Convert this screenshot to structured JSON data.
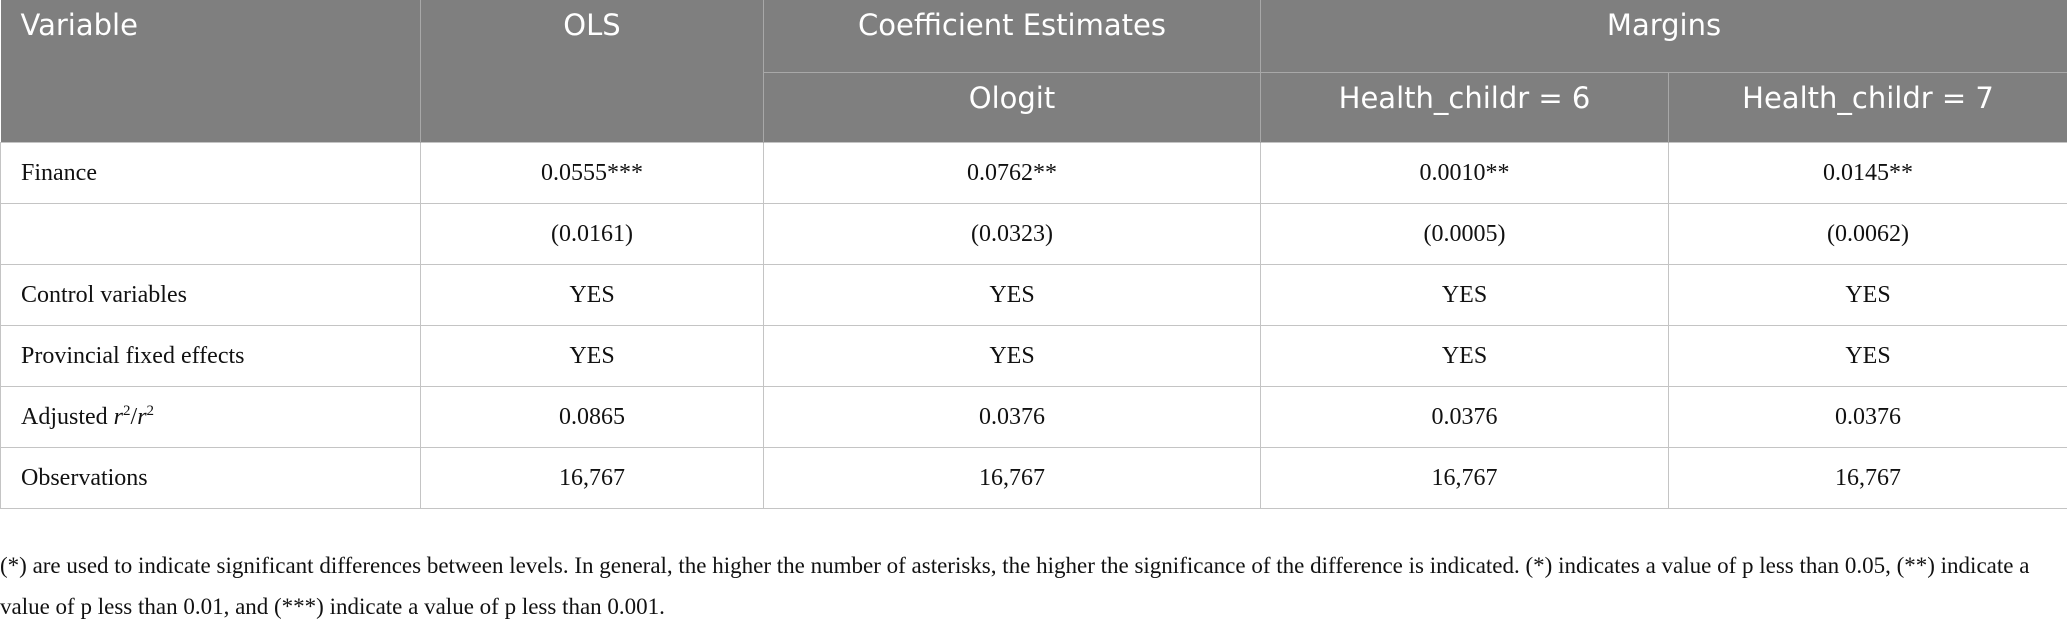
{
  "table": {
    "header": {
      "row1": [
        "Variable",
        "OLS",
        "Coefficient Estimates",
        "Margins"
      ],
      "row2": [
        "Ologit",
        "Health_childr = 6",
        "Health_childr = 7"
      ]
    },
    "rows": [
      {
        "label": [
          "Finance"
        ],
        "cells": [
          "0.0555***",
          "0.0762**",
          "0.0010**",
          "0.0145**"
        ]
      },
      {
        "label": [],
        "cells": [
          "(0.0161)",
          "(0.0323)",
          "(0.0005)",
          "(0.0062)"
        ]
      },
      {
        "label": [
          "Control variables"
        ],
        "cells": [
          "YES",
          "YES",
          "YES",
          "YES"
        ]
      },
      {
        "label": [
          "Provincial fixed effects"
        ],
        "cells": [
          "YES",
          "YES",
          "YES",
          "YES"
        ]
      },
      {
        "label": [
          "Adjusted ",
          "r",
          "2",
          "/",
          "r",
          "2"
        ],
        "cells": [
          "0.0865",
          "0.0376",
          "0.0376",
          "0.0376"
        ]
      },
      {
        "label": [
          "Observations"
        ],
        "cells": [
          "16,767",
          "16,767",
          "16,767",
          "16,767"
        ]
      }
    ]
  },
  "footnote": "(*) are used to indicate significant differences between levels. In general, the higher the number of asterisks, the higher the significance of the difference is indicated. (*) indicates a value of p less than 0.05, (**) indicate a value of p less than 0.01, and (***) indicate a value of p less than 0.001."
}
